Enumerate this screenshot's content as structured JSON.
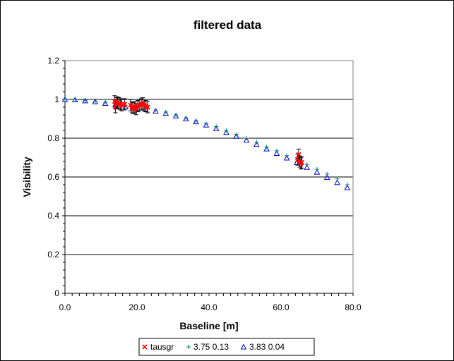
{
  "chart_data": {
    "type": "scatter",
    "title": "filtered data",
    "xlabel": "Baseline [m]",
    "ylabel": "Visibility",
    "xlim": [
      0,
      80
    ],
    "ylim": [
      0,
      1.2
    ],
    "x_ticks": [
      "0.0",
      "20.0",
      "40.0",
      "60.0",
      "80.0"
    ],
    "y_ticks": [
      "0",
      "0.2",
      "0.4",
      "0.6",
      "0.8",
      "1",
      "1.2"
    ],
    "grid": "horizontal",
    "legend_position": "bottom",
    "series": [
      {
        "name": "tausgr",
        "marker": "asterisk",
        "color": "#ff0000",
        "points": [
          [
            13.8,
            0.99
          ],
          [
            14.0,
            0.96
          ],
          [
            14.3,
            0.98
          ],
          [
            14.6,
            0.985
          ],
          [
            15.0,
            0.98
          ],
          [
            15.4,
            0.975
          ],
          [
            15.8,
            0.97
          ],
          [
            16.6,
            0.975
          ],
          [
            18.2,
            0.97
          ],
          [
            18.6,
            0.96
          ],
          [
            19.0,
            0.955
          ],
          [
            19.4,
            0.96
          ],
          [
            19.8,
            0.95
          ],
          [
            20.2,
            0.965
          ],
          [
            20.6,
            0.97
          ],
          [
            21.2,
            0.975
          ],
          [
            21.6,
            0.98
          ],
          [
            22.0,
            0.97
          ],
          [
            22.5,
            0.965
          ],
          [
            23.0,
            0.96
          ],
          [
            64.6,
            0.69
          ],
          [
            64.9,
            0.715
          ],
          [
            65.2,
            0.68
          ],
          [
            65.5,
            0.67
          ],
          [
            65.8,
            0.675
          ]
        ]
      },
      {
        "name": "3.75 0.13",
        "marker": "plus",
        "color": "#008080",
        "points": [
          [
            0,
            1.0
          ],
          [
            2.8,
            1.0
          ],
          [
            5.6,
            0.995
          ],
          [
            8.4,
            0.99
          ],
          [
            11.2,
            0.985
          ],
          [
            14.0,
            0.978
          ],
          [
            16.8,
            0.97
          ],
          [
            19.6,
            0.96
          ],
          [
            22.4,
            0.955
          ],
          [
            25.2,
            0.945
          ],
          [
            28.0,
            0.935
          ],
          [
            30.8,
            0.92
          ],
          [
            33.6,
            0.905
          ],
          [
            36.4,
            0.89
          ],
          [
            39.2,
            0.875
          ],
          [
            42.0,
            0.86
          ],
          [
            44.8,
            0.84
          ],
          [
            47.6,
            0.82
          ],
          [
            50.4,
            0.8
          ],
          [
            53.2,
            0.78
          ],
          [
            56.0,
            0.755
          ],
          [
            58.8,
            0.735
          ],
          [
            61.6,
            0.71
          ],
          [
            64.4,
            0.69
          ],
          [
            67.2,
            0.665
          ],
          [
            70.0,
            0.64
          ],
          [
            72.8,
            0.615
          ],
          [
            75.6,
            0.59
          ],
          [
            78.4,
            0.56
          ]
        ]
      },
      {
        "name": "3.83 0.04",
        "marker": "triangle",
        "color": "#0000cc",
        "points": [
          [
            0,
            1.0
          ],
          [
            2.8,
            0.998
          ],
          [
            5.6,
            0.993
          ],
          [
            8.4,
            0.988
          ],
          [
            11.2,
            0.98
          ],
          [
            14.0,
            0.972
          ],
          [
            16.8,
            0.962
          ],
          [
            19.6,
            0.952
          ],
          [
            22.4,
            0.95
          ],
          [
            25.2,
            0.94
          ],
          [
            28.0,
            0.928
          ],
          [
            30.8,
            0.915
          ],
          [
            33.6,
            0.9
          ],
          [
            36.4,
            0.885
          ],
          [
            39.2,
            0.868
          ],
          [
            42.0,
            0.85
          ],
          [
            44.8,
            0.83
          ],
          [
            47.6,
            0.81
          ],
          [
            50.4,
            0.79
          ],
          [
            53.2,
            0.768
          ],
          [
            56.0,
            0.745
          ],
          [
            58.8,
            0.722
          ],
          [
            61.6,
            0.698
          ],
          [
            64.4,
            0.675
          ],
          [
            67.2,
            0.65
          ],
          [
            70.0,
            0.625
          ],
          [
            72.8,
            0.598
          ],
          [
            75.6,
            0.572
          ],
          [
            78.4,
            0.545
          ]
        ]
      }
    ]
  }
}
